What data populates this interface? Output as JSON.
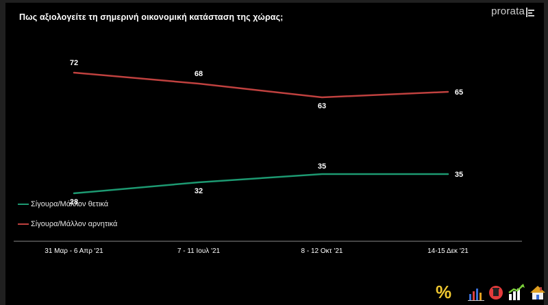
{
  "header": {
    "title": "Πως αξιολογείτε τη σημερινή οικονομική κατάσταση της χώρας;",
    "brand": "prorata"
  },
  "colors": {
    "background": "#000000",
    "positive": "#1d9a72",
    "negative": "#c0413f",
    "axis": "#8a8a8a",
    "text": "#ffffff"
  },
  "chart_data": {
    "type": "line",
    "title": "Πως αξιολογείτε τη σημερινή οικονομική κατάσταση της χώρας;",
    "categories": [
      "31 Μαρ - 6 Απρ '21",
      "7 - 11 Ιουλ '21",
      "8 - 12 Οκτ '21",
      "14-15 Δεκ '21"
    ],
    "series": [
      {
        "name": "Σίγουρα/Μάλλον θετικά",
        "color": "#1d9a72",
        "values": [
          28,
          32,
          35,
          35
        ]
      },
      {
        "name": "Σίγουρα/Μάλλον αρνητικά",
        "color": "#c0413f",
        "values": [
          72,
          68,
          63,
          65
        ]
      }
    ],
    "grid": false,
    "legend": "bottom-left"
  },
  "footer": {
    "percent_symbol": "%",
    "icons": [
      "bar-chart-icon",
      "trash-bin-icon",
      "growth-chart-icon",
      "house-icon"
    ]
  }
}
